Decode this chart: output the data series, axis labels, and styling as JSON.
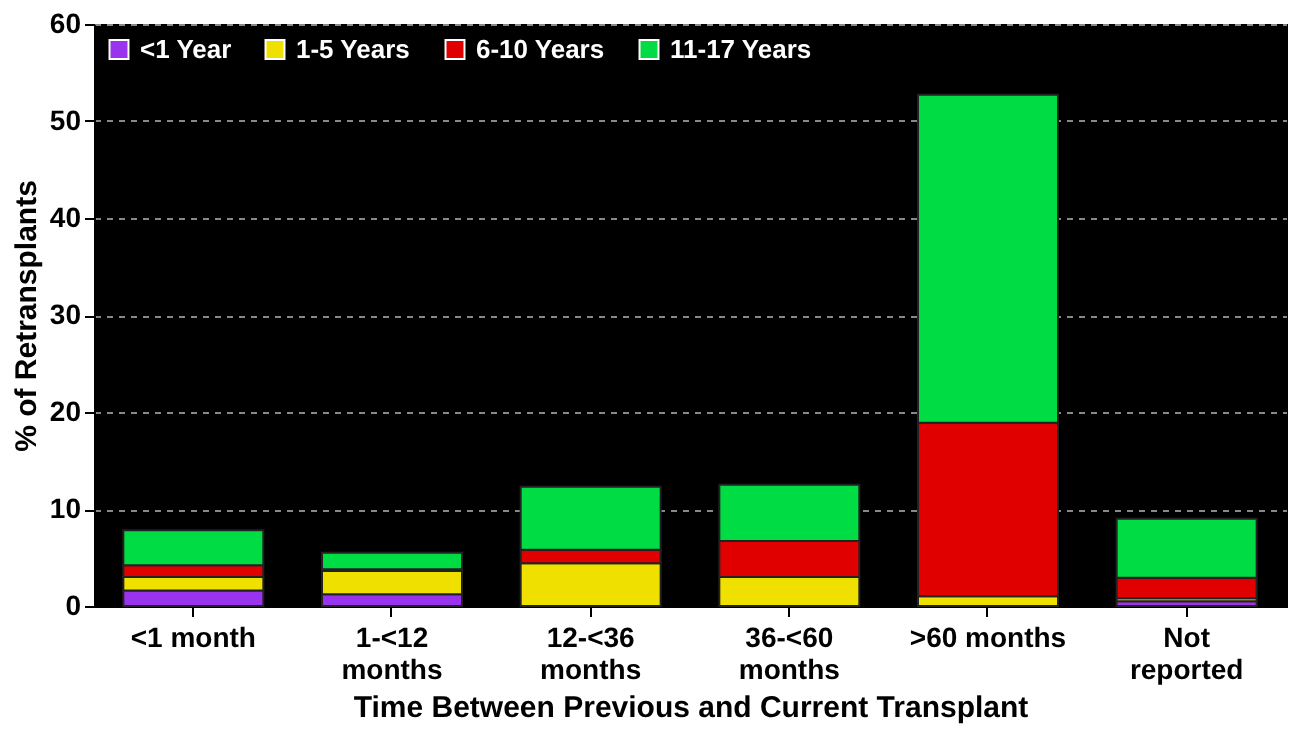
{
  "chart_data": {
    "type": "bar",
    "stacked": true,
    "xlabel": "Time Between Previous and Current Transplant",
    "ylabel": "% of Retransplants",
    "categories": [
      "<1 month",
      "1-<12\nmonths",
      "12-<36\nmonths",
      "36-<60\nmonths",
      ">60 months",
      "Not\nreported"
    ],
    "series": [
      {
        "name": "<1 Year",
        "color": "#9933ee",
        "values": [
          1.6,
          1.2,
          0,
          0,
          0,
          0.5
        ]
      },
      {
        "name": "1-5 Years",
        "color": "#f0e000",
        "values": [
          1.4,
          2.4,
          4.4,
          3.0,
          1.0,
          0.3
        ]
      },
      {
        "name": "6-10 Years",
        "color": "#e00000",
        "values": [
          1.2,
          0.2,
          1.4,
          3.7,
          17.9,
          2.1
        ]
      },
      {
        "name": "11-17 Years",
        "color": "#00dd44",
        "values": [
          3.6,
          1.7,
          6.5,
          5.8,
          33.8,
          6.1
        ]
      }
    ],
    "ylim": [
      0,
      60
    ],
    "yticks": [
      0,
      10,
      20,
      30,
      40,
      50,
      60
    ],
    "grid": "y",
    "legend": "top left"
  }
}
